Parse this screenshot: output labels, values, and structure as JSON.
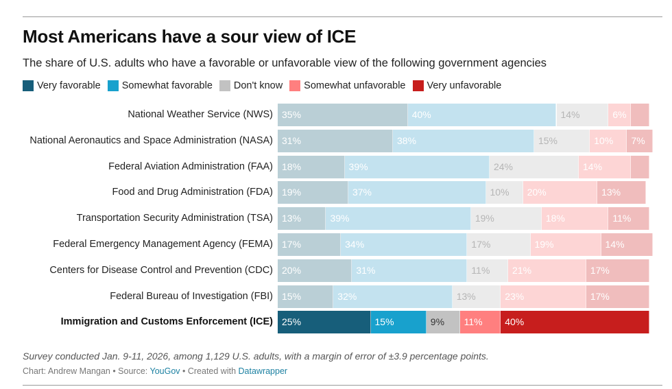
{
  "title": "Most Americans have a sour view of ICE",
  "subtitle": "The share of U.S. adults who have a favorable or unfavorable view of the following government agencies",
  "notes": "Survey conducted Jan. 9-11, 2026, among 1,129 U.S. adults, with a margin of error of ±3.9 percentage points.",
  "byline": {
    "chart_prefix": "Chart: Andrew Mangan",
    "sep1": " • Source: ",
    "source_link": "YouGov",
    "sep2": " • Created with ",
    "tool_link": "Datawrapper"
  },
  "colors": {
    "very_favorable": "#175e7a",
    "somewhat_favorable": "#18a1cd",
    "dont_know": "#c2c2c2",
    "somewhat_unfavorable": "#ff7f7f",
    "very_unfavorable": "#c71e1d",
    "muted": {
      "very_favorable": "#bacfd6",
      "somewhat_favorable": "#c3e2ef",
      "dont_know": "#ebebeb",
      "somewhat_unfavorable": "#fdd5d5",
      "very_unfavorable": "#f0bdbd"
    }
  },
  "chart_data": {
    "type": "bar",
    "orientation": "horizontal",
    "stacked": true,
    "title": "Most Americans have a sour view of ICE",
    "subtitle": "The share of U.S. adults who have a favorable or unfavorable view of the following government agencies",
    "xlabel": "",
    "ylabel": "",
    "xlim": [
      0,
      100
    ],
    "unit": "%",
    "legend_position": "top-left",
    "highlighted_category": "Immigration and Customs Enforcement (ICE)",
    "legend": [
      "Very favorable",
      "Somewhat favorable",
      "Don't know",
      "Somewhat unfavorable",
      "Very unfavorable"
    ],
    "categories": [
      "National Weather Service (NWS)",
      "National Aeronautics and Space Administration (NASA)",
      "Federal Aviation Administration (FAA)",
      "Food and Drug Administration (FDA)",
      "Transportation Security Administration (TSA)",
      "Federal Emergency Management Agency (FEMA)",
      "Centers for Disease Control and Prevention (CDC)",
      "Federal Bureau of Investigation (FBI)",
      "Immigration and Customs Enforcement (ICE)"
    ],
    "series": [
      {
        "name": "Very favorable",
        "key": "very_favorable",
        "values": [
          35,
          31,
          18,
          19,
          13,
          17,
          20,
          15,
          25
        ]
      },
      {
        "name": "Somewhat favorable",
        "key": "somewhat_favorable",
        "values": [
          40,
          38,
          39,
          37,
          39,
          34,
          31,
          32,
          15
        ]
      },
      {
        "name": "Don't know",
        "key": "dont_know",
        "values": [
          14,
          15,
          24,
          10,
          19,
          17,
          11,
          13,
          9
        ]
      },
      {
        "name": "Somewhat unfavorable",
        "key": "somewhat_unfavorable",
        "values": [
          6,
          10,
          14,
          20,
          18,
          19,
          21,
          23,
          11
        ]
      },
      {
        "name": "Very unfavorable",
        "key": "very_unfavorable",
        "values": [
          5,
          7,
          5,
          13,
          11,
          14,
          17,
          17,
          40
        ]
      }
    ],
    "hidden_labels": [
      [
        0,
        4
      ],
      [
        2,
        4
      ]
    ]
  }
}
